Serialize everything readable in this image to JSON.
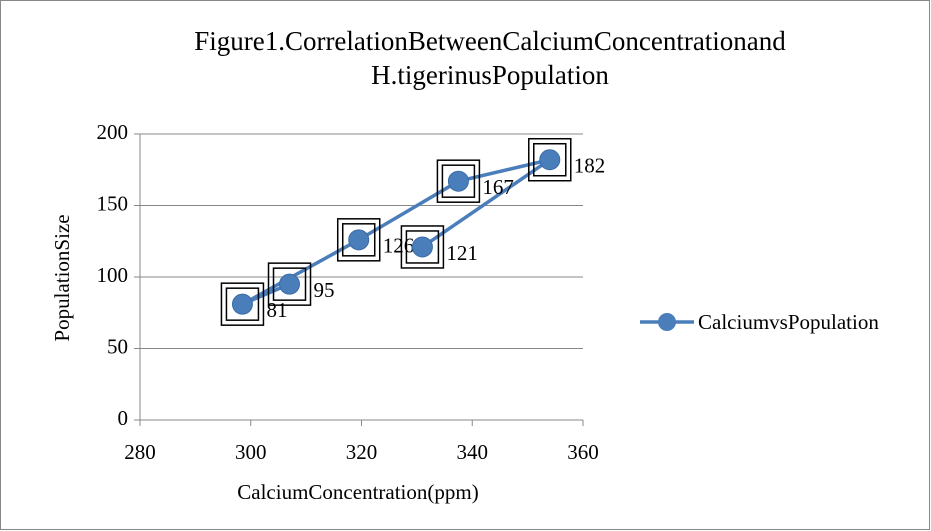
{
  "chart_data": {
    "type": "scatter-line",
    "title": [
      "Figure1.CorrelationBetweenCalciumConcentrationand",
      "H.tigerinusPopulation"
    ],
    "x_label": "CalciumConcentration(ppm)",
    "y_label": "PopulationSize",
    "series": [
      {
        "name": "CalciumvsPopulation",
        "color": "#4a7ebb",
        "x": [
          307,
          298.5,
          319.5,
          337.5,
          354,
          331
        ],
        "values": [
          95,
          81,
          126,
          167,
          182,
          121
        ]
      }
    ],
    "xlim": [
      280,
      360
    ],
    "xticks": [
      280,
      300,
      320,
      340,
      360
    ],
    "ylim": [
      0,
      200
    ],
    "yticks": [
      0,
      50,
      100,
      150,
      200
    ],
    "grid": true,
    "legend": "right"
  }
}
